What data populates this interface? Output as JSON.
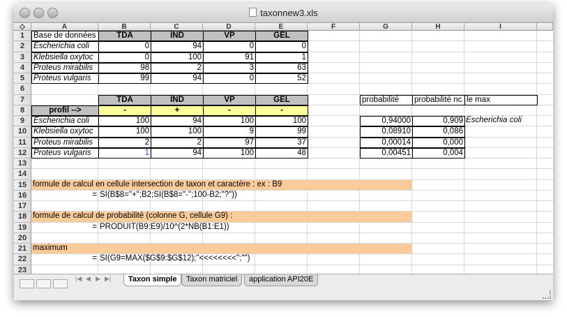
{
  "window": {
    "title": "taxonnew3.xls"
  },
  "columns": [
    "A",
    "B",
    "C",
    "D",
    "E",
    "F",
    "G",
    "H",
    "I"
  ],
  "rows": {
    "1": {
      "A": "Base de données",
      "B": "TDA",
      "C": "IND",
      "D": "VP",
      "E": "GEL"
    },
    "2": {
      "A": "Escherichia coli",
      "B": "0",
      "C": "94",
      "D": "0",
      "E": "0"
    },
    "3": {
      "A": "Klebsiella oxytoc",
      "B": "0",
      "C": "100",
      "D": "91",
      "E": "1"
    },
    "4": {
      "A": "Proteus mirabilis",
      "B": "98",
      "C": "2",
      "D": "3",
      "E": "63"
    },
    "5": {
      "A": "Proteus vulgaris",
      "B": "99",
      "C": "94",
      "D": "0",
      "E": "52"
    },
    "6": {},
    "7": {
      "B": "TDA",
      "C": "IND",
      "D": "VP",
      "E": "GEL",
      "G": "probabilité",
      "H": "probabilité nc",
      "I": "le max"
    },
    "8": {
      "A": "profil -->",
      "B": "-",
      "C": "+",
      "D": "-",
      "E": "-"
    },
    "9": {
      "A": "Escherichia coli",
      "B": "100",
      "C": "94",
      "D": "100",
      "E": "100",
      "G": "0,94000",
      "H": "0,909",
      "I": "Escherichia coli"
    },
    "10": {
      "A": "Klebsiella oxytoc",
      "B": "100",
      "C": "100",
      "D": "9",
      "E": "99",
      "G": "0,08910",
      "H": "0,086"
    },
    "11": {
      "A": "Proteus mirabilis",
      "B": "2",
      "C": "2",
      "D": "97",
      "E": "37",
      "G": "0,00014",
      "H": "0,000"
    },
    "12": {
      "A": "Proteus vulgaris",
      "B": "1",
      "C": "94",
      "D": "100",
      "E": "48",
      "G": "0,00451",
      "H": "0,004"
    },
    "13": {},
    "14": {},
    "15": {
      "A": "formule de calcul en cellule intersection de taxon et caractère : ex : B9"
    },
    "16": {
      "A": "=",
      "B": "SI(B$8=\"+\";B2;SI(B$8=\"-\";100-B2;\"?\"))"
    },
    "17": {},
    "18": {
      "A": "formule de calcul de probabilité (colonne G, cellule G9) :"
    },
    "19": {
      "A": "=",
      "B": "PRODUIT(B9:E9)/10^(2*NB(B1:E1))"
    },
    "20": {},
    "21": {
      "A": "maximum"
    },
    "22": {
      "A": "=",
      "B": "SI(G9=MAX($G$9:$G$12);\"<<<<<<<<\";\"\")"
    },
    "23": {}
  },
  "sheet_tabs": [
    {
      "label": "Taxon simple",
      "active": true
    },
    {
      "label": "Taxon matriciel",
      "active": false
    },
    {
      "label": "application API20E",
      "active": false
    }
  ],
  "colors": {
    "header_gray": "#c0c0c0",
    "profile_yellow": "#ffff99",
    "formula_orange": "#fbcb9a"
  }
}
